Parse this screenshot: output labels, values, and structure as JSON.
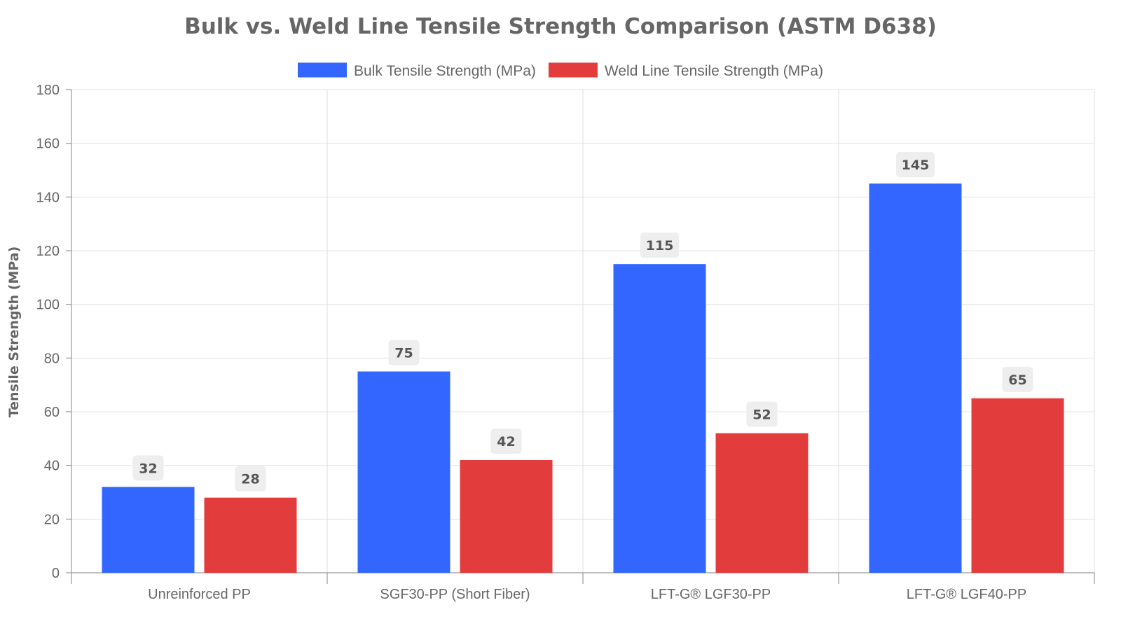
{
  "chart_data": {
    "type": "bar",
    "title": "Bulk vs. Weld Line Tensile Strength Comparison (ASTM D638)",
    "xlabel": "",
    "ylabel": "Tensile Strength (MPa)",
    "categories": [
      "Unreinforced PP",
      "SGF30-PP (Short Fiber)",
      "LFT-G® LGF30-PP",
      "LFT-G® LGF40-PP"
    ],
    "series": [
      {
        "name": "Bulk Tensile Strength (MPa)",
        "color": "#3366ff",
        "values": [
          32,
          75,
          115,
          145
        ]
      },
      {
        "name": "Weld Line Tensile Strength (MPa)",
        "color": "#e33c3c",
        "values": [
          28,
          42,
          52,
          65
        ]
      }
    ],
    "ylim": [
      0,
      180
    ],
    "yticks": [
      0,
      20,
      40,
      60,
      80,
      100,
      120,
      140,
      160,
      180
    ],
    "grid": true,
    "legend_position": "top-center",
    "data_labels": true
  }
}
